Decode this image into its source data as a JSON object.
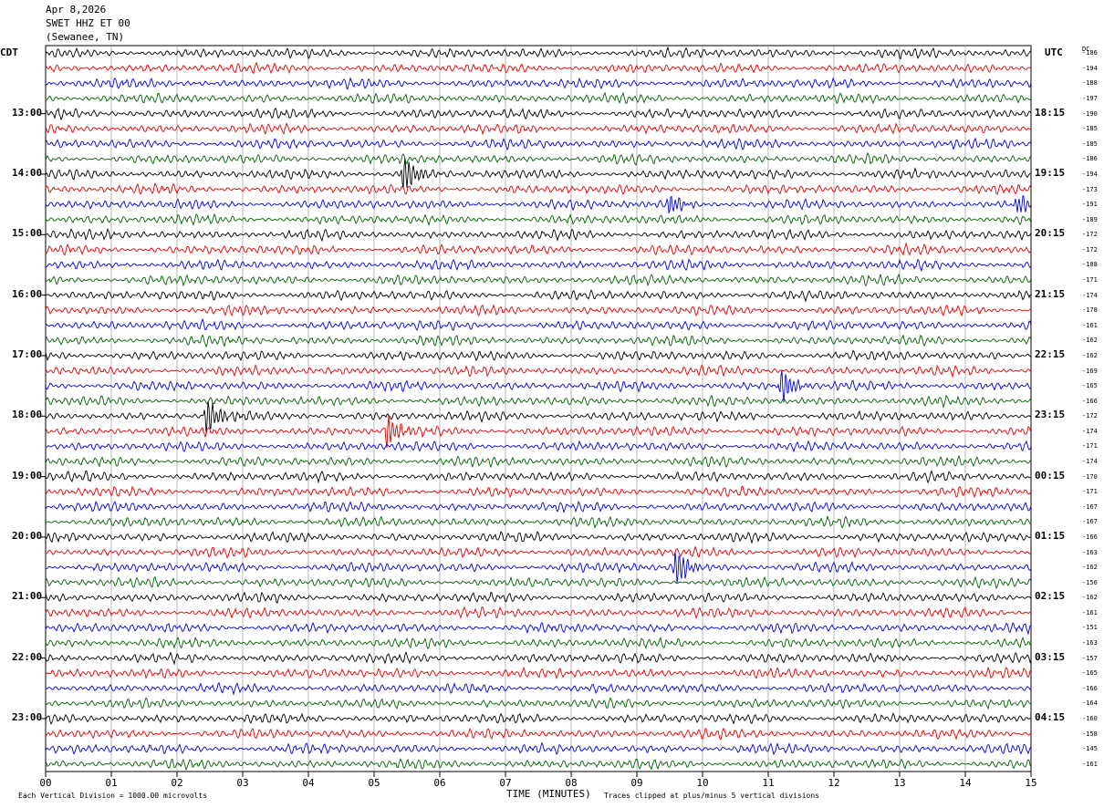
{
  "header": {
    "date": "Apr 8,2026",
    "station": "SWET HHZ ET 00",
    "location": "(Sewanee, TN)"
  },
  "left_tz": "CDT",
  "right_tz": "UTC",
  "dc_header": "DC",
  "footer": {
    "left_note": "Each Vertical Division = 1000.00 microvolts",
    "xlabel": "TIME (MINUTES)",
    "right_note": "Traces clipped at plus/minus 5 vertical divisions"
  },
  "colors": {
    "cycle": [
      "#000000",
      "#e00000",
      "#0000e0",
      "#006000"
    ],
    "grid": "#888888"
  },
  "chart_data": {
    "type": "line",
    "title": "",
    "xlabel": "TIME (MINUTES)",
    "xlim": [
      0,
      15
    ],
    "x_ticks": [
      "00",
      "01",
      "02",
      "03",
      "04",
      "05",
      "06",
      "07",
      "08",
      "09",
      "10",
      "11",
      "12",
      "13",
      "14",
      "15"
    ],
    "left_hour_labels": [
      "13:00",
      "14:00",
      "15:00",
      "16:00",
      "17:00",
      "18:00",
      "19:00",
      "20:00",
      "21:00",
      "22:00",
      "23:00"
    ],
    "right_hour_labels": [
      "18:15",
      "19:15",
      "20:15",
      "21:15",
      "22:15",
      "23:15",
      "00:15",
      "01:15",
      "02:15",
      "03:15",
      "04:15"
    ],
    "rows_per_hour": 4,
    "dc_offsets": [
      -186,
      -194,
      -188,
      -197,
      -190,
      -185,
      -185,
      -186,
      -194,
      -173,
      -191,
      -189,
      -172,
      -172,
      -188,
      -171,
      -174,
      -178,
      -161,
      -162,
      -162,
      -169,
      -165,
      -166,
      -172,
      -174,
      -171,
      -174,
      -170,
      -171,
      -167,
      -167,
      -166,
      -163,
      -162,
      -156,
      -162,
      -161,
      -151,
      -163,
      -157,
      -165,
      -166,
      -164,
      -160,
      -158,
      -145,
      -161
    ],
    "events": [
      {
        "row": 8,
        "minute": 5.45,
        "amplitude": 2.2
      },
      {
        "row": 10,
        "minute": 9.5,
        "amplitude": 1.3
      },
      {
        "row": 10,
        "minute": 14.8,
        "amplitude": 1.3
      },
      {
        "row": 22,
        "minute": 11.2,
        "amplitude": 2.0
      },
      {
        "row": 24,
        "minute": 2.45,
        "amplitude": 2.2
      },
      {
        "row": 25,
        "minute": 5.2,
        "amplitude": 1.9
      },
      {
        "row": 34,
        "minute": 9.6,
        "amplitude": 2.3
      }
    ]
  }
}
